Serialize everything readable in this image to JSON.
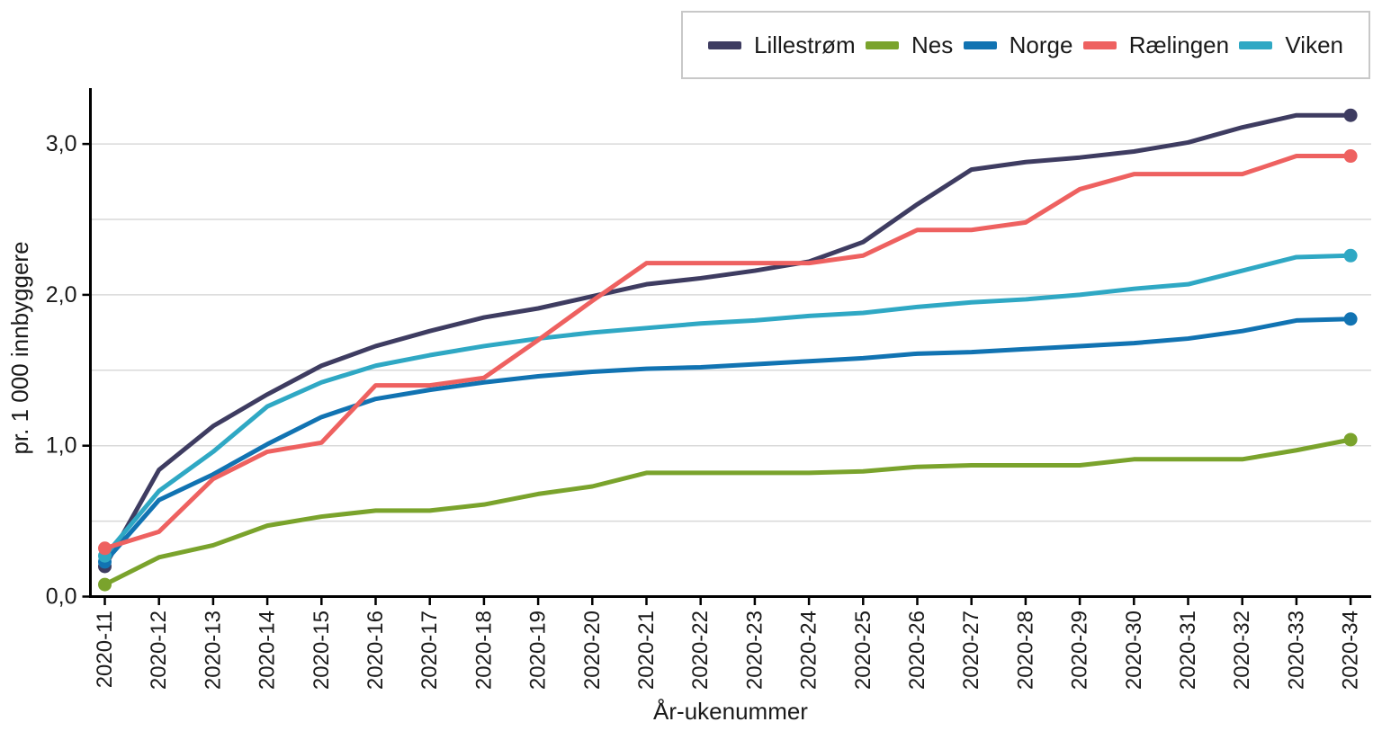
{
  "chart_data": {
    "type": "line",
    "title": "",
    "xlabel": "År-ukenummer",
    "ylabel": "pr. 1 000 innbyggere",
    "x_categories": [
      "2020-11",
      "2020-12",
      "2020-13",
      "2020-14",
      "2020-15",
      "2020-16",
      "2020-17",
      "2020-18",
      "2020-19",
      "2020-20",
      "2020-21",
      "2020-22",
      "2020-23",
      "2020-24",
      "2020-25",
      "2020-26",
      "2020-27",
      "2020-28",
      "2020-29",
      "2020-30",
      "2020-31",
      "2020-32",
      "2020-33",
      "2020-34"
    ],
    "ylim": [
      0,
      3.35
    ],
    "grid": true,
    "gridlines": [
      0.5,
      1.0,
      1.5,
      2.0,
      2.5,
      3.0
    ],
    "y_tick_values": [
      0,
      1,
      2,
      3
    ],
    "y_tick_labels": [
      "0,0",
      "1,0",
      "2,0",
      "3,0"
    ],
    "legend_position": "top-right",
    "series": [
      {
        "name": "Lillestrøm",
        "color": "#3e3c61",
        "values": [
          0.2,
          0.84,
          1.13,
          1.34,
          1.53,
          1.66,
          1.76,
          1.85,
          1.91,
          1.99,
          2.07,
          2.11,
          2.16,
          2.22,
          2.35,
          2.6,
          2.83,
          2.88,
          2.91,
          2.95,
          3.01,
          3.11,
          3.19,
          3.19
        ]
      },
      {
        "name": "Nes",
        "color": "#7aa32c",
        "values": [
          0.08,
          0.26,
          0.34,
          0.47,
          0.53,
          0.57,
          0.57,
          0.61,
          0.68,
          0.73,
          0.82,
          0.82,
          0.82,
          0.82,
          0.83,
          0.86,
          0.87,
          0.87,
          0.87,
          0.91,
          0.91,
          0.91,
          0.97,
          1.04
        ]
      },
      {
        "name": "Norge",
        "color": "#1173b2",
        "values": [
          0.23,
          0.64,
          0.81,
          1.01,
          1.19,
          1.31,
          1.37,
          1.42,
          1.46,
          1.49,
          1.51,
          1.52,
          1.54,
          1.56,
          1.58,
          1.61,
          1.62,
          1.64,
          1.66,
          1.68,
          1.71,
          1.76,
          1.83,
          1.84
        ]
      },
      {
        "name": "Rælingen",
        "color": "#ee6160",
        "values": [
          0.32,
          0.43,
          0.78,
          0.96,
          1.02,
          1.4,
          1.4,
          1.45,
          1.7,
          1.96,
          2.21,
          2.21,
          2.21,
          2.21,
          2.26,
          2.43,
          2.43,
          2.48,
          2.7,
          2.8,
          2.8,
          2.8,
          2.92,
          2.92
        ]
      },
      {
        "name": "Viken",
        "color": "#2fa8c4",
        "values": [
          0.27,
          0.7,
          0.96,
          1.26,
          1.42,
          1.53,
          1.6,
          1.66,
          1.71,
          1.75,
          1.78,
          1.81,
          1.83,
          1.86,
          1.88,
          1.92,
          1.95,
          1.97,
          2.0,
          2.04,
          2.07,
          2.16,
          2.25,
          2.26
        ]
      }
    ],
    "draw_order": [
      0,
      1,
      2,
      4,
      3
    ],
    "axis_color": "#000000",
    "grid_color": "#d9d9d9",
    "tick_label_color": "#1a1a1a"
  }
}
